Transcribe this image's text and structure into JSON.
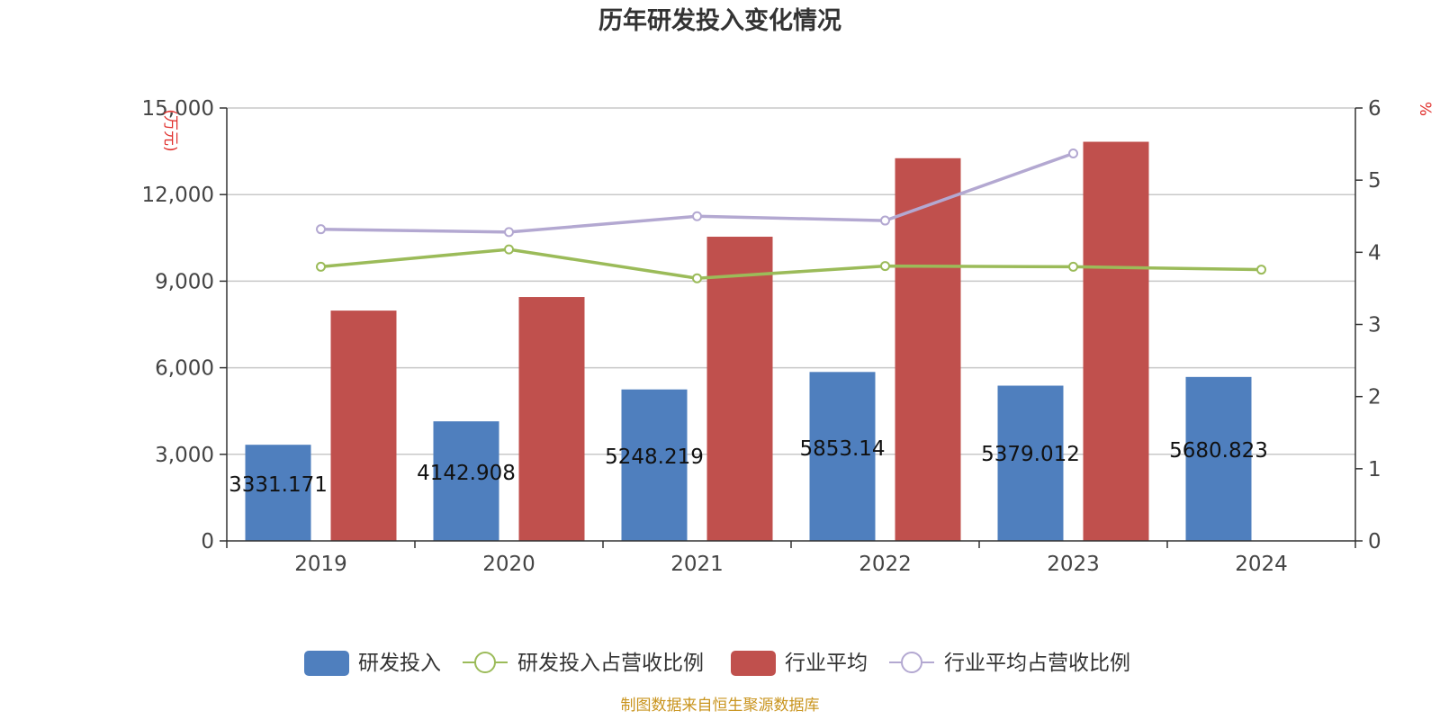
{
  "chart_data": {
    "type": "bar",
    "title": "历年研发投入变化情况",
    "source": "制图数据来自恒生聚源数据库",
    "categories": [
      "2019",
      "2020",
      "2021",
      "2022",
      "2023",
      "2024"
    ],
    "y_left": {
      "unit": "(万元)",
      "ylim": [
        0,
        15000
      ],
      "ticks": [
        0,
        3000,
        6000,
        9000,
        12000,
        15000
      ],
      "tick_labels": [
        "0",
        "3,000",
        "6,000",
        "9,000",
        "12,000",
        "15,000"
      ]
    },
    "y_right": {
      "unit": "%",
      "ylim": [
        0,
        6
      ],
      "ticks": [
        0,
        1,
        2,
        3,
        4,
        5,
        6
      ],
      "tick_labels": [
        "0",
        "1",
        "2",
        "3",
        "4",
        "5",
        "6"
      ]
    },
    "grid": true,
    "legend_position": "bottom",
    "series": [
      {
        "name": "研发投入",
        "type": "bar",
        "axis": "left",
        "color": "#4f7fbe",
        "values": [
          3331.171,
          4142.908,
          5248.219,
          5853.14,
          5379.012,
          5680.823
        ],
        "labels": [
          "3331.171",
          "4142.908",
          "5248.219",
          "5853.14",
          "5379.012",
          "5680.823"
        ]
      },
      {
        "name": "研发投入占营收比例",
        "type": "line",
        "axis": "right",
        "color": "#9bbb59",
        "values": [
          3.8,
          4.04,
          3.64,
          3.81,
          3.8,
          3.76
        ]
      },
      {
        "name": "行业平均",
        "type": "bar",
        "axis": "left",
        "color": "#c0504d",
        "values": [
          7980,
          8450,
          10540,
          13260,
          13830,
          null
        ]
      },
      {
        "name": "行业平均占营收比例",
        "type": "line",
        "axis": "right",
        "color": "#b3a8d1",
        "values": [
          4.32,
          4.28,
          4.5,
          4.44,
          5.37,
          null
        ]
      }
    ]
  }
}
